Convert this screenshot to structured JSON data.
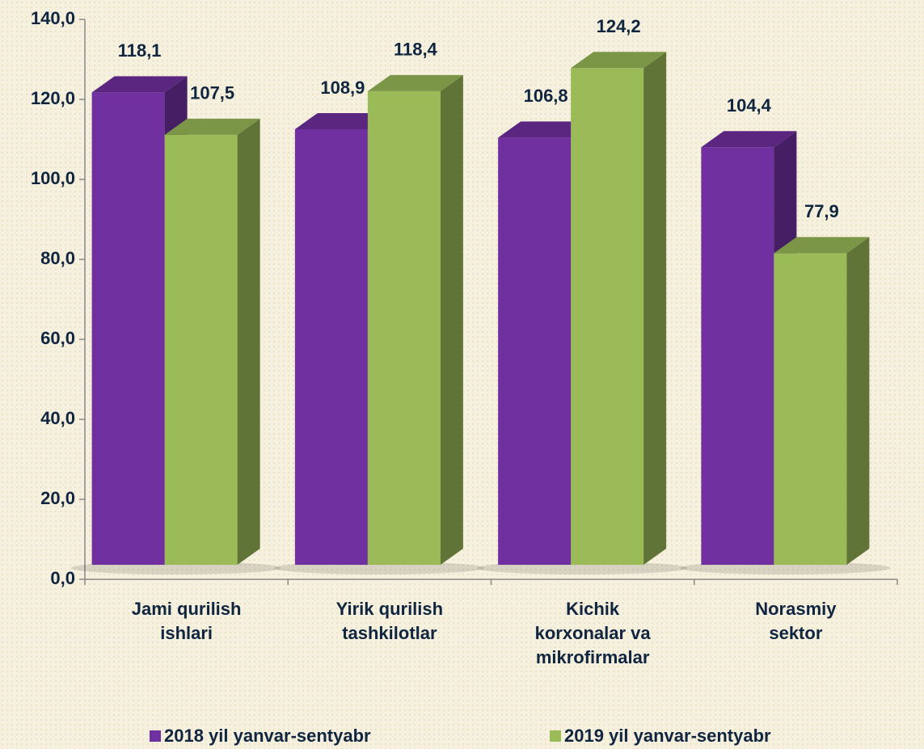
{
  "chart_data": {
    "type": "bar3d",
    "categories": [
      "Jami qurilish\nishlari",
      "Yirik qurilish\ntashkilotlar",
      "Kichik\nkorxonalar va\nmikrofirmalar",
      "Norasmiy\nsektor"
    ],
    "series": [
      {
        "name": "2018 yil yanvar-sentyabr",
        "color": "#7030a0",
        "values": [
          118.1,
          108.9,
          106.8,
          104.4
        ],
        "value_labels": [
          "118,1",
          "108,9",
          "106,8",
          "104,4"
        ]
      },
      {
        "name": "2019 yil yanvar-sentyabr",
        "color": "#9bbb59",
        "values": [
          107.5,
          118.4,
          124.2,
          77.9
        ],
        "value_labels": [
          "107,5",
          "118,4",
          "124,2",
          "77,9"
        ]
      }
    ],
    "ylim": [
      0,
      140
    ],
    "yticks": [
      {
        "value": 0,
        "label": "0,0"
      },
      {
        "value": 20,
        "label": "20,0"
      },
      {
        "value": 40,
        "label": "40,0"
      },
      {
        "value": 60,
        "label": "60,0"
      },
      {
        "value": 80,
        "label": "80,0"
      },
      {
        "value": 100,
        "label": "100,0"
      },
      {
        "value": 120,
        "label": "120,0"
      },
      {
        "value": 140,
        "label": "140,0"
      }
    ],
    "legend": "bottom"
  }
}
